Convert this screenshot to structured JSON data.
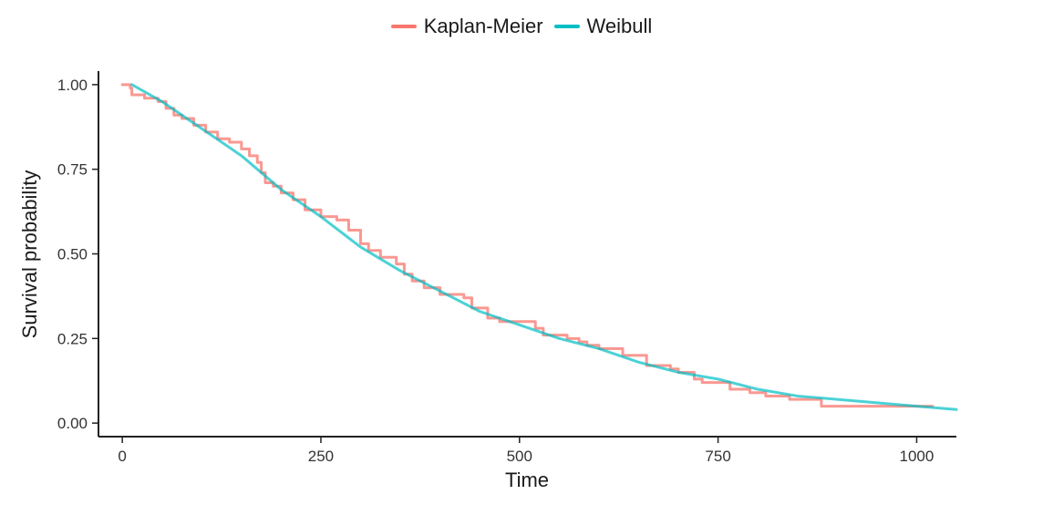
{
  "chart_data": {
    "type": "line",
    "title": "",
    "xlabel": "Time",
    "ylabel": "Survival probability",
    "xlim": [
      -30,
      1050
    ],
    "ylim": [
      -0.04,
      1.04
    ],
    "x_ticks": [
      0,
      250,
      500,
      750,
      1000
    ],
    "x_tick_labels": [
      "0",
      "250",
      "500",
      "750",
      "1000"
    ],
    "y_ticks": [
      0,
      0.25,
      0.5,
      0.75,
      1.0
    ],
    "y_tick_labels": [
      "0.00",
      "0.25",
      "0.50",
      "0.75",
      "1.00"
    ],
    "grid": false,
    "legend_position": "top",
    "series": [
      {
        "name": "Kaplan-Meier",
        "color": "#F8766D",
        "step": true,
        "x": [
          0,
          10,
          12,
          28,
          45,
          55,
          65,
          75,
          90,
          105,
          120,
          135,
          150,
          160,
          170,
          175,
          180,
          190,
          200,
          215,
          230,
          250,
          270,
          285,
          300,
          310,
          325,
          345,
          355,
          365,
          380,
          400,
          430,
          440,
          460,
          475,
          490,
          520,
          530,
          545,
          560,
          575,
          585,
          600,
          630,
          660,
          690,
          700,
          720,
          730,
          765,
          790,
          810,
          840,
          880,
          1020
        ],
        "y": [
          1.0,
          0.99,
          0.97,
          0.96,
          0.95,
          0.93,
          0.91,
          0.9,
          0.88,
          0.86,
          0.84,
          0.83,
          0.81,
          0.79,
          0.77,
          0.74,
          0.71,
          0.7,
          0.68,
          0.66,
          0.63,
          0.61,
          0.6,
          0.57,
          0.53,
          0.51,
          0.49,
          0.47,
          0.44,
          0.42,
          0.4,
          0.38,
          0.37,
          0.34,
          0.31,
          0.3,
          0.3,
          0.28,
          0.26,
          0.26,
          0.25,
          0.24,
          0.23,
          0.22,
          0.2,
          0.17,
          0.16,
          0.15,
          0.13,
          0.12,
          0.1,
          0.09,
          0.08,
          0.07,
          0.05,
          0.05
        ]
      },
      {
        "name": "Weibull",
        "color": "#00BFC4",
        "step": false,
        "x": [
          12,
          50,
          100,
          150,
          200,
          250,
          300,
          350,
          400,
          450,
          500,
          550,
          600,
          650,
          700,
          750,
          800,
          850,
          900,
          950,
          1000,
          1050
        ],
        "y": [
          1.0,
          0.95,
          0.87,
          0.79,
          0.69,
          0.61,
          0.52,
          0.45,
          0.39,
          0.33,
          0.29,
          0.25,
          0.22,
          0.18,
          0.15,
          0.13,
          0.1,
          0.08,
          0.07,
          0.06,
          0.05,
          0.04
        ]
      }
    ]
  }
}
